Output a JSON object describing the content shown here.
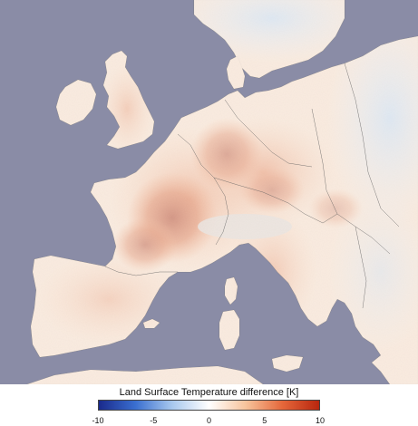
{
  "colors": {
    "sea": "#8a8ca6",
    "land_neutral": "#f3e7dc",
    "cold": "#c7dcf0",
    "warm_light": "#f6c7a4",
    "warm_mid": "#ec8a55",
    "hot": "#c9461c",
    "hottest": "#a8300f",
    "border": "#6b6b6b"
  },
  "legend": {
    "title": "Land Surface Temperature difference [K]",
    "ticks": [
      "-10",
      "-5",
      "0",
      "5",
      "10"
    ],
    "min": -10,
    "max": 10,
    "colormap": [
      "#1a2a8c",
      "#3a6fd0",
      "#a8c8ee",
      "#ffffff",
      "#f7c49c",
      "#e5673a",
      "#b8260e"
    ]
  }
}
